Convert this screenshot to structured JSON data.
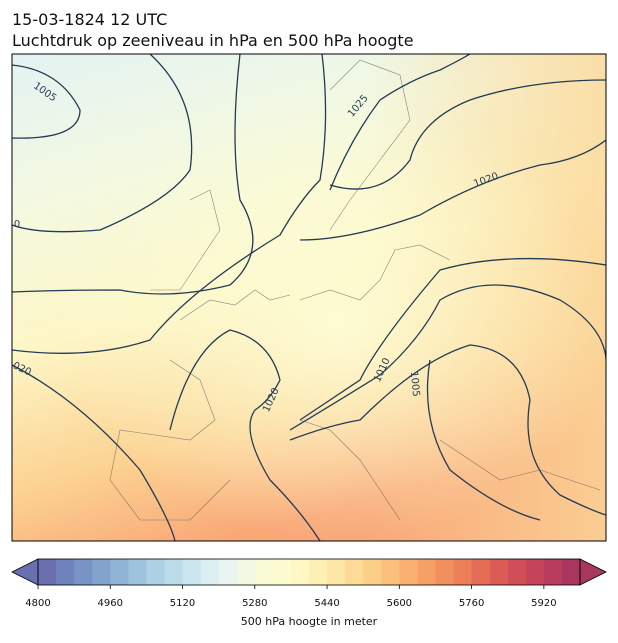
{
  "title": [
    "15-03-1824 12 UTC",
    "Luchtdruk op zeeniveau in hPa en 500 hPa hoogte"
  ],
  "map": {
    "contour_labels": [
      "1005",
      "1025",
      "1020",
      "0",
      "020",
      "1020",
      "1010",
      "1005"
    ]
  },
  "colorbar": {
    "label": "500 hPa hoogte in meter",
    "range": [
      4800,
      6000
    ],
    "ticks": [
      4800,
      4960,
      5120,
      5280,
      5440,
      5600,
      5760,
      5920
    ],
    "extend": "both",
    "colors": [
      "#6a6fb0",
      "#6f82bb",
      "#7893c4",
      "#82a4cc",
      "#8fb4d6",
      "#9dc3de",
      "#acd0e4",
      "#bcdcea",
      "#cce6ef",
      "#dceff3",
      "#e8f5f0",
      "#f1f8e3",
      "#f8fbd6",
      "#fdfcd0",
      "#fef7c4",
      "#fef0b5",
      "#fde6a6",
      "#fddb97",
      "#fccf89",
      "#fbc07b",
      "#f9b070",
      "#f6a066",
      "#f28f5e",
      "#ec7e58",
      "#e56d55",
      "#dc5c55",
      "#d24e56",
      "#c64459",
      "#b93c5c",
      "#a8365e"
    ]
  }
}
